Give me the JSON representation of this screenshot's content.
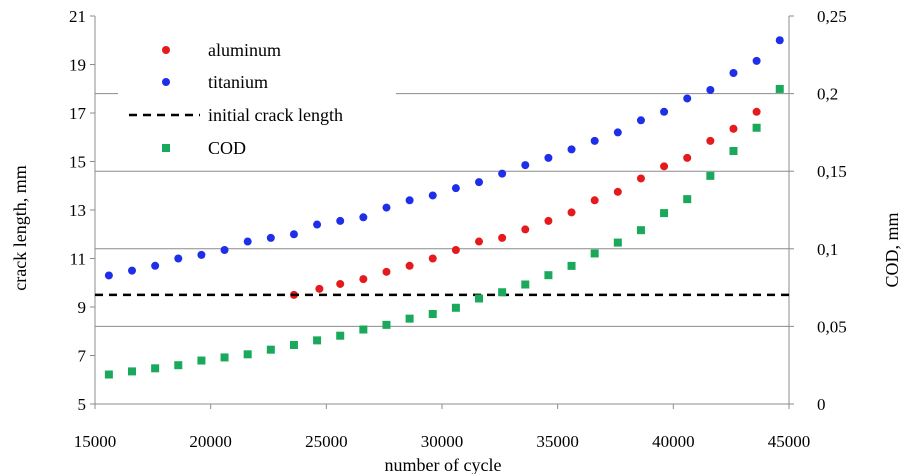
{
  "chart_data": {
    "type": "scatter",
    "x_axis": {
      "label": "number of cycle",
      "range": [
        15000,
        45000
      ],
      "ticks": [
        "15000",
        "20000",
        "25000",
        "30000",
        "35000",
        "40000",
        "45000"
      ]
    },
    "y_axis_left": {
      "label": "crack length, mm",
      "range": [
        5,
        21
      ],
      "ticks": [
        "5",
        "7",
        "9",
        "11",
        "13",
        "15",
        "17",
        "19",
        "21"
      ]
    },
    "y_axis_right": {
      "label": "COD, mm",
      "range": [
        0,
        0.25
      ],
      "ticks": [
        "0",
        "0,05",
        "0,1",
        "0,15",
        "0,2",
        "0,25"
      ]
    },
    "grid": "horizontal lines at right-axis ticks",
    "legend_position": "top-left",
    "series": [
      {
        "name": "aluminum",
        "axis": "left",
        "marker": "circle",
        "color": "#e41a1c",
        "x": [
          23600,
          24700,
          25600,
          26600,
          27600,
          28600,
          29600,
          30600,
          31600,
          32600,
          33600,
          34600,
          35600,
          36600,
          37600,
          38600,
          39600,
          40600,
          41600,
          42600,
          43600
        ],
        "y": [
          9.5,
          9.75,
          9.95,
          10.15,
          10.45,
          10.7,
          11.0,
          11.35,
          11.7,
          11.85,
          12.2,
          12.55,
          12.9,
          13.4,
          13.75,
          14.3,
          14.8,
          15.15,
          15.85,
          16.35,
          17.05
        ]
      },
      {
        "name": "titanium",
        "axis": "left",
        "marker": "circle",
        "color": "#1f2ee8",
        "x": [
          15600,
          16600,
          17600,
          18600,
          19600,
          20600,
          21600,
          22600,
          23600,
          24600,
          25600,
          26600,
          27600,
          28600,
          29600,
          30600,
          31600,
          32600,
          33600,
          34600,
          35600,
          36600,
          37600,
          38600,
          39600,
          40600,
          41600,
          42600,
          43600,
          44600
        ],
        "y": [
          10.3,
          10.5,
          10.7,
          11.0,
          11.15,
          11.35,
          11.7,
          11.85,
          12.0,
          12.4,
          12.55,
          12.7,
          13.1,
          13.4,
          13.6,
          13.9,
          14.15,
          14.5,
          14.85,
          15.15,
          15.5,
          15.85,
          16.2,
          16.7,
          17.05,
          17.6,
          17.95,
          18.65,
          19.15,
          20.0
        ]
      },
      {
        "name": "initial crack length",
        "axis": "left",
        "marker": "dashed-line",
        "color": "#000000",
        "x": [
          15000,
          45000
        ],
        "y": [
          9.5,
          9.5
        ]
      },
      {
        "name": "COD",
        "axis": "right",
        "marker": "square",
        "color": "#1aa85b",
        "x": [
          15600,
          16600,
          17600,
          18600,
          19600,
          20600,
          21600,
          22600,
          23600,
          24600,
          25600,
          26600,
          27600,
          28600,
          29600,
          30600,
          31600,
          32600,
          33600,
          34600,
          35600,
          36600,
          37600,
          38600,
          39600,
          40600,
          41600,
          42600,
          43600,
          44600
        ],
        "y": [
          0.019,
          0.021,
          0.023,
          0.025,
          0.028,
          0.03,
          0.032,
          0.035,
          0.038,
          0.041,
          0.044,
          0.048,
          0.051,
          0.055,
          0.058,
          0.062,
          0.068,
          0.072,
          0.077,
          0.083,
          0.089,
          0.097,
          0.104,
          0.112,
          0.123,
          0.132,
          0.147,
          0.163,
          0.178,
          0.203
        ]
      }
    ]
  }
}
